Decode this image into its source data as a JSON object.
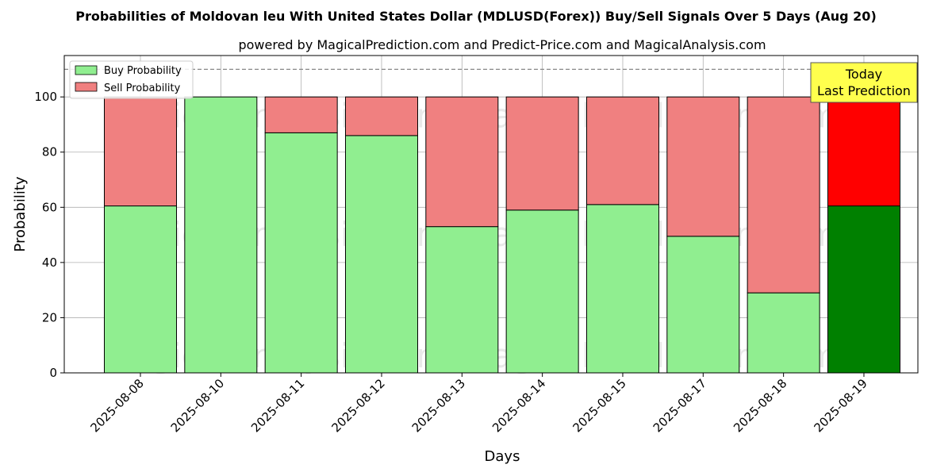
{
  "chart_data": {
    "type": "bar",
    "stacked": true,
    "title": "Probabilities of Moldovan leu With United States Dollar (MDLUSD(Forex)) Buy/Sell Signals Over 5 Days (Aug 20)",
    "subtitle": "powered by MagicalPrediction.com and Predict-Price.com and MagicalAnalysis.com",
    "xlabel": "Days",
    "ylabel": "Probability",
    "ylim": [
      0,
      115
    ],
    "yticks": [
      0,
      20,
      40,
      60,
      80,
      100
    ],
    "grid": true,
    "legend_position": "top-left",
    "reference_line": 110,
    "categories": [
      "2025-08-08",
      "2025-08-10",
      "2025-08-11",
      "2025-08-12",
      "2025-08-13",
      "2025-08-14",
      "2025-08-15",
      "2025-08-17",
      "2025-08-18",
      "2025-08-19"
    ],
    "series": [
      {
        "name": "Buy Probability",
        "color": "#90EE90",
        "highlight_color": "#008000",
        "values": [
          60.5,
          100,
          87,
          86,
          53,
          59,
          61,
          49.5,
          29,
          60.5
        ]
      },
      {
        "name": "Sell Probability",
        "color": "#F08080",
        "highlight_color": "#FF0000",
        "values": [
          39.5,
          0,
          13,
          14,
          47,
          41,
          39,
          50.5,
          71,
          39.5
        ]
      }
    ],
    "highlight_index": 9,
    "annotation": {
      "line1": "Today",
      "line2": "Last Prediction",
      "color": "#FFFF4D"
    },
    "watermarks": [
      "MagicalAnalysis.com",
      "MagicalPrediction.com"
    ]
  }
}
